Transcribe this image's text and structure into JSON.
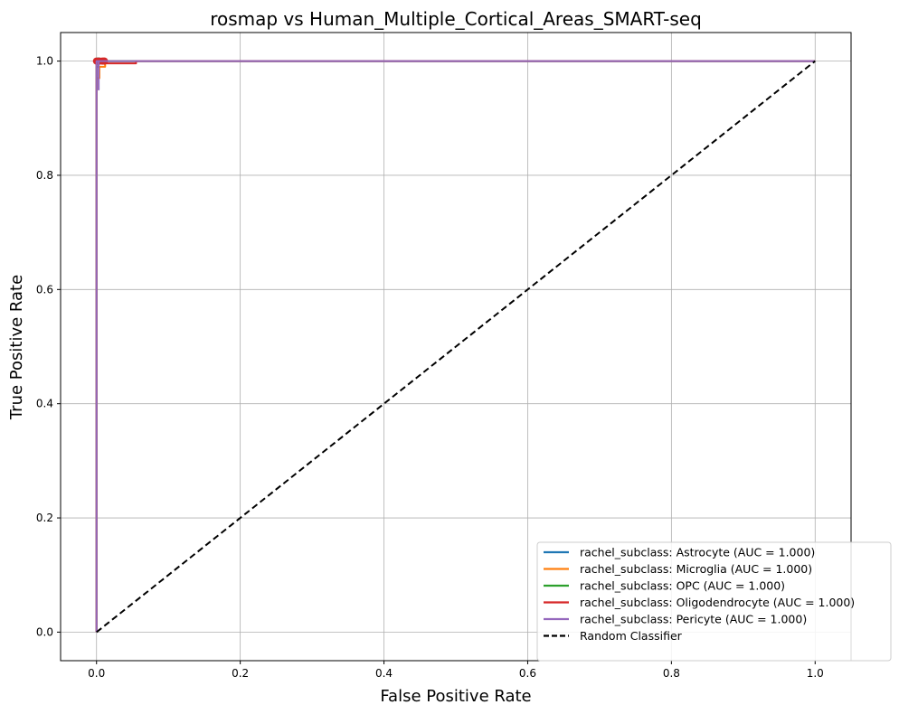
{
  "chart_data": {
    "type": "line",
    "title": "rosmap vs Human_Multiple_Cortical_Areas_SMART-seq",
    "xlabel": "False Positive Rate",
    "ylabel": "True Positive Rate",
    "xlim": [
      -0.05,
      1.05
    ],
    "ylim": [
      -0.05,
      1.05
    ],
    "grid": true,
    "legend_position": "lower-right",
    "x_ticks": [
      0.0,
      0.2,
      0.4,
      0.6,
      0.8,
      1.0
    ],
    "y_ticks": [
      0.0,
      0.2,
      0.4,
      0.6,
      0.8,
      1.0
    ],
    "x_tick_labels": [
      "0.0",
      "0.2",
      "0.4",
      "0.6",
      "0.8",
      "1.0"
    ],
    "y_tick_labels": [
      "0.0",
      "0.2",
      "0.4",
      "0.6",
      "0.8",
      "1.0"
    ],
    "series": [
      {
        "name": "rachel_subclass: Astrocyte (AUC = 1.000)",
        "color": "#1f77b4",
        "x": [
          0.0,
          0.0,
          0.003,
          0.003,
          1.0
        ],
        "y": [
          0.0,
          0.99,
          0.99,
          1.0,
          1.0
        ],
        "marker_points": [
          [
            0.003,
            1.0
          ]
        ]
      },
      {
        "name": "rachel_subclass: Microglia (AUC = 1.000)",
        "color": "#ff7f0e",
        "x": [
          0.0,
          0.0,
          0.004,
          0.004,
          0.012,
          0.012,
          1.0
        ],
        "y": [
          0.0,
          0.97,
          0.97,
          0.99,
          0.99,
          1.0,
          1.0
        ],
        "marker_points": [
          [
            0.01,
            1.0
          ]
        ]
      },
      {
        "name": "rachel_subclass: OPC (AUC = 1.000)",
        "color": "#2ca02c",
        "x": [
          0.0,
          0.0,
          0.002,
          0.002,
          1.0
        ],
        "y": [
          0.0,
          0.995,
          0.995,
          1.0,
          1.0
        ],
        "marker_points": [
          [
            0.002,
            1.0
          ]
        ]
      },
      {
        "name": "rachel_subclass: Oligodendrocyte (AUC = 1.000)",
        "color": "#d62728",
        "x": [
          0.0,
          0.0,
          0.055,
          0.055,
          1.0
        ],
        "y": [
          0.0,
          0.996,
          0.996,
          1.0,
          1.0
        ],
        "marker_points": [
          [
            0.0,
            1.0
          ],
          [
            0.004,
            1.0
          ],
          [
            0.008,
            1.0
          ],
          [
            0.011,
            1.0
          ]
        ]
      },
      {
        "name": "rachel_subclass: Pericyte (AUC = 1.000)",
        "color": "#9467bd",
        "x": [
          0.0,
          0.0,
          0.003,
          0.003,
          0.003,
          0.003,
          1.0
        ],
        "y": [
          0.0,
          1.0,
          1.0,
          0.95,
          0.95,
          1.0,
          1.0
        ],
        "marker_points": []
      },
      {
        "name": "Random Classifier",
        "color": "#000000",
        "dashed": true,
        "x": [
          0.0,
          1.0
        ],
        "y": [
          0.0,
          1.0
        ],
        "marker_points": []
      }
    ]
  }
}
